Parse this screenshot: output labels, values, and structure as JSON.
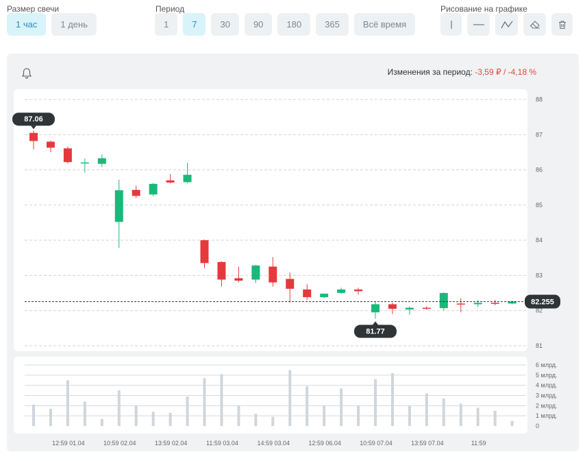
{
  "controls": {
    "candle_size": {
      "title": "Размер свечи",
      "options": [
        "1 час",
        "1 день"
      ],
      "selected": "1 час"
    },
    "period": {
      "title": "Период",
      "options": [
        "1",
        "7",
        "30",
        "90",
        "180",
        "365",
        "Всё время"
      ],
      "selected": "7"
    },
    "drawing": {
      "title": "Рисование на графике",
      "tools": [
        "vertical-line-icon",
        "horizontal-line-icon",
        "trend-line-icon",
        "eraser-icon",
        "trash-icon"
      ]
    }
  },
  "summary": {
    "label": "Изменения за период:",
    "abs_change": "-3,59 ₽",
    "separator": "/",
    "pct_change": "-4,18 %"
  },
  "icons": {
    "alert": "bell-icon"
  },
  "colors": {
    "up": "#1bb87a",
    "down": "#e5393c",
    "volume": "#cfd6dc",
    "accent": "#2a8fb4"
  },
  "chart_data": {
    "type": "candlestick",
    "price_axis": {
      "ticks": [
        "88",
        "87",
        "86",
        "85",
        "84",
        "83",
        "82",
        "81"
      ],
      "ylim": [
        81,
        88
      ]
    },
    "volume_axis": {
      "ticks": [
        "6 млрд.",
        "5 млрд.",
        "4 млрд.",
        "3 млрд.",
        "2 млрд.",
        "1 млрд.",
        "0"
      ],
      "ylim": [
        0,
        6
      ]
    },
    "x_tick_labels": [
      "12:59 01.04",
      "10:59 02.04",
      "13:59 02.04",
      "11:59 03.04",
      "14:59 03.04",
      "12:59 06.04",
      "10:59 07.04",
      "13:59 07.04",
      "11:59"
    ],
    "candles": [
      {
        "o": 87.05,
        "h": 87.12,
        "l": 86.58,
        "c": 86.82,
        "v": 2.1
      },
      {
        "o": 86.8,
        "h": 86.83,
        "l": 86.5,
        "c": 86.63,
        "v": 1.7
      },
      {
        "o": 86.61,
        "h": 86.66,
        "l": 86.18,
        "c": 86.22,
        "v": 4.5
      },
      {
        "o": 86.2,
        "h": 86.32,
        "l": 85.92,
        "c": 86.21,
        "v": 2.4
      },
      {
        "o": 86.17,
        "h": 86.44,
        "l": 86.08,
        "c": 86.33,
        "v": 0.7
      },
      {
        "o": 84.52,
        "h": 85.72,
        "l": 83.78,
        "c": 85.42,
        "v": 3.5
      },
      {
        "o": 85.43,
        "h": 85.55,
        "l": 85.2,
        "c": 85.26,
        "v": 2.0
      },
      {
        "o": 85.3,
        "h": 85.63,
        "l": 85.25,
        "c": 85.6,
        "v": 1.4
      },
      {
        "o": 85.7,
        "h": 85.88,
        "l": 85.62,
        "c": 85.64,
        "v": 1.3
      },
      {
        "o": 85.65,
        "h": 86.2,
        "l": 85.62,
        "c": 85.86,
        "v": 2.9
      },
      {
        "o": 84.0,
        "h": 84.02,
        "l": 83.2,
        "c": 83.35,
        "v": 4.7
      },
      {
        "o": 83.38,
        "h": 83.4,
        "l": 82.68,
        "c": 82.88,
        "v": 5.1
      },
      {
        "o": 82.92,
        "h": 83.25,
        "l": 82.8,
        "c": 82.85,
        "v": 2.0
      },
      {
        "o": 82.88,
        "h": 83.3,
        "l": 82.78,
        "c": 83.28,
        "v": 1.2
      },
      {
        "o": 83.25,
        "h": 83.52,
        "l": 82.68,
        "c": 82.8,
        "v": 0.9
      },
      {
        "o": 82.9,
        "h": 83.08,
        "l": 82.22,
        "c": 82.62,
        "v": 5.5
      },
      {
        "o": 82.6,
        "h": 82.75,
        "l": 82.3,
        "c": 82.38,
        "v": 3.9
      },
      {
        "o": 82.38,
        "h": 82.48,
        "l": 82.35,
        "c": 82.48,
        "v": 2.0
      },
      {
        "o": 82.5,
        "h": 82.65,
        "l": 82.48,
        "c": 82.6,
        "v": 3.7
      },
      {
        "o": 82.6,
        "h": 82.65,
        "l": 82.45,
        "c": 82.55,
        "v": 2.0
      },
      {
        "o": 81.95,
        "h": 82.25,
        "l": 81.77,
        "c": 82.18,
        "v": 4.6
      },
      {
        "o": 82.18,
        "h": 82.22,
        "l": 81.9,
        "c": 82.05,
        "v": 5.2
      },
      {
        "o": 82.03,
        "h": 82.12,
        "l": 81.88,
        "c": 82.08,
        "v": 2.0
      },
      {
        "o": 82.08,
        "h": 82.12,
        "l": 82.02,
        "c": 82.05,
        "v": 3.2
      },
      {
        "o": 82.07,
        "h": 82.52,
        "l": 82.0,
        "c": 82.5,
        "v": 2.7
      },
      {
        "o": 82.2,
        "h": 82.35,
        "l": 81.95,
        "c": 82.18,
        "v": 2.2
      },
      {
        "o": 82.18,
        "h": 82.3,
        "l": 82.1,
        "c": 82.22,
        "v": 1.8
      },
      {
        "o": 82.22,
        "h": 82.3,
        "l": 82.15,
        "c": 82.2,
        "v": 1.5
      },
      {
        "o": 82.2,
        "h": 82.27,
        "l": 82.18,
        "c": 82.26,
        "v": 0.5
      }
    ],
    "last_price": "82.255",
    "max_label": "87.06",
    "min_label": "81.77"
  }
}
